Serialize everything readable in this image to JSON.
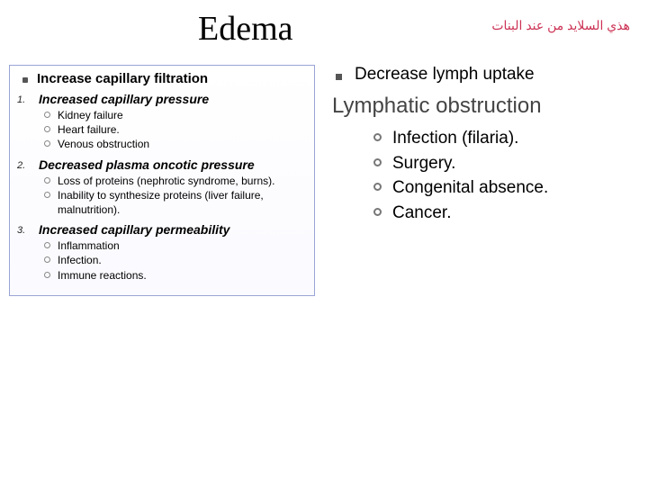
{
  "title": "Edema",
  "arabic": "هذي السلايد من عند البنات",
  "left": {
    "header": "Increase capillary filtration",
    "sections": [
      {
        "num": "1.",
        "title": "Increased capillary pressure",
        "items": [
          "Kidney failure",
          "Heart failure.",
          "Venous obstruction"
        ]
      },
      {
        "num": "2.",
        "title": "Decreased plasma oncotic pressure",
        "items": [
          "Loss of proteins (nephrotic syndrome, burns).",
          "Inability to synthesize proteins (liver failure, malnutrition)."
        ]
      },
      {
        "num": "3.",
        "title": "Increased capillary permeability",
        "items": [
          "Inflammation",
          "Infection.",
          "Immune reactions."
        ]
      }
    ]
  },
  "right": {
    "header": "Decrease lymph uptake",
    "title": "Lymphatic obstruction",
    "items": [
      "Infection (filaria).",
      "Surgery.",
      "Congenital absence.",
      "Cancer."
    ]
  },
  "colors": {
    "arabic": "#cc3355",
    "border": "#9aa4d6"
  }
}
